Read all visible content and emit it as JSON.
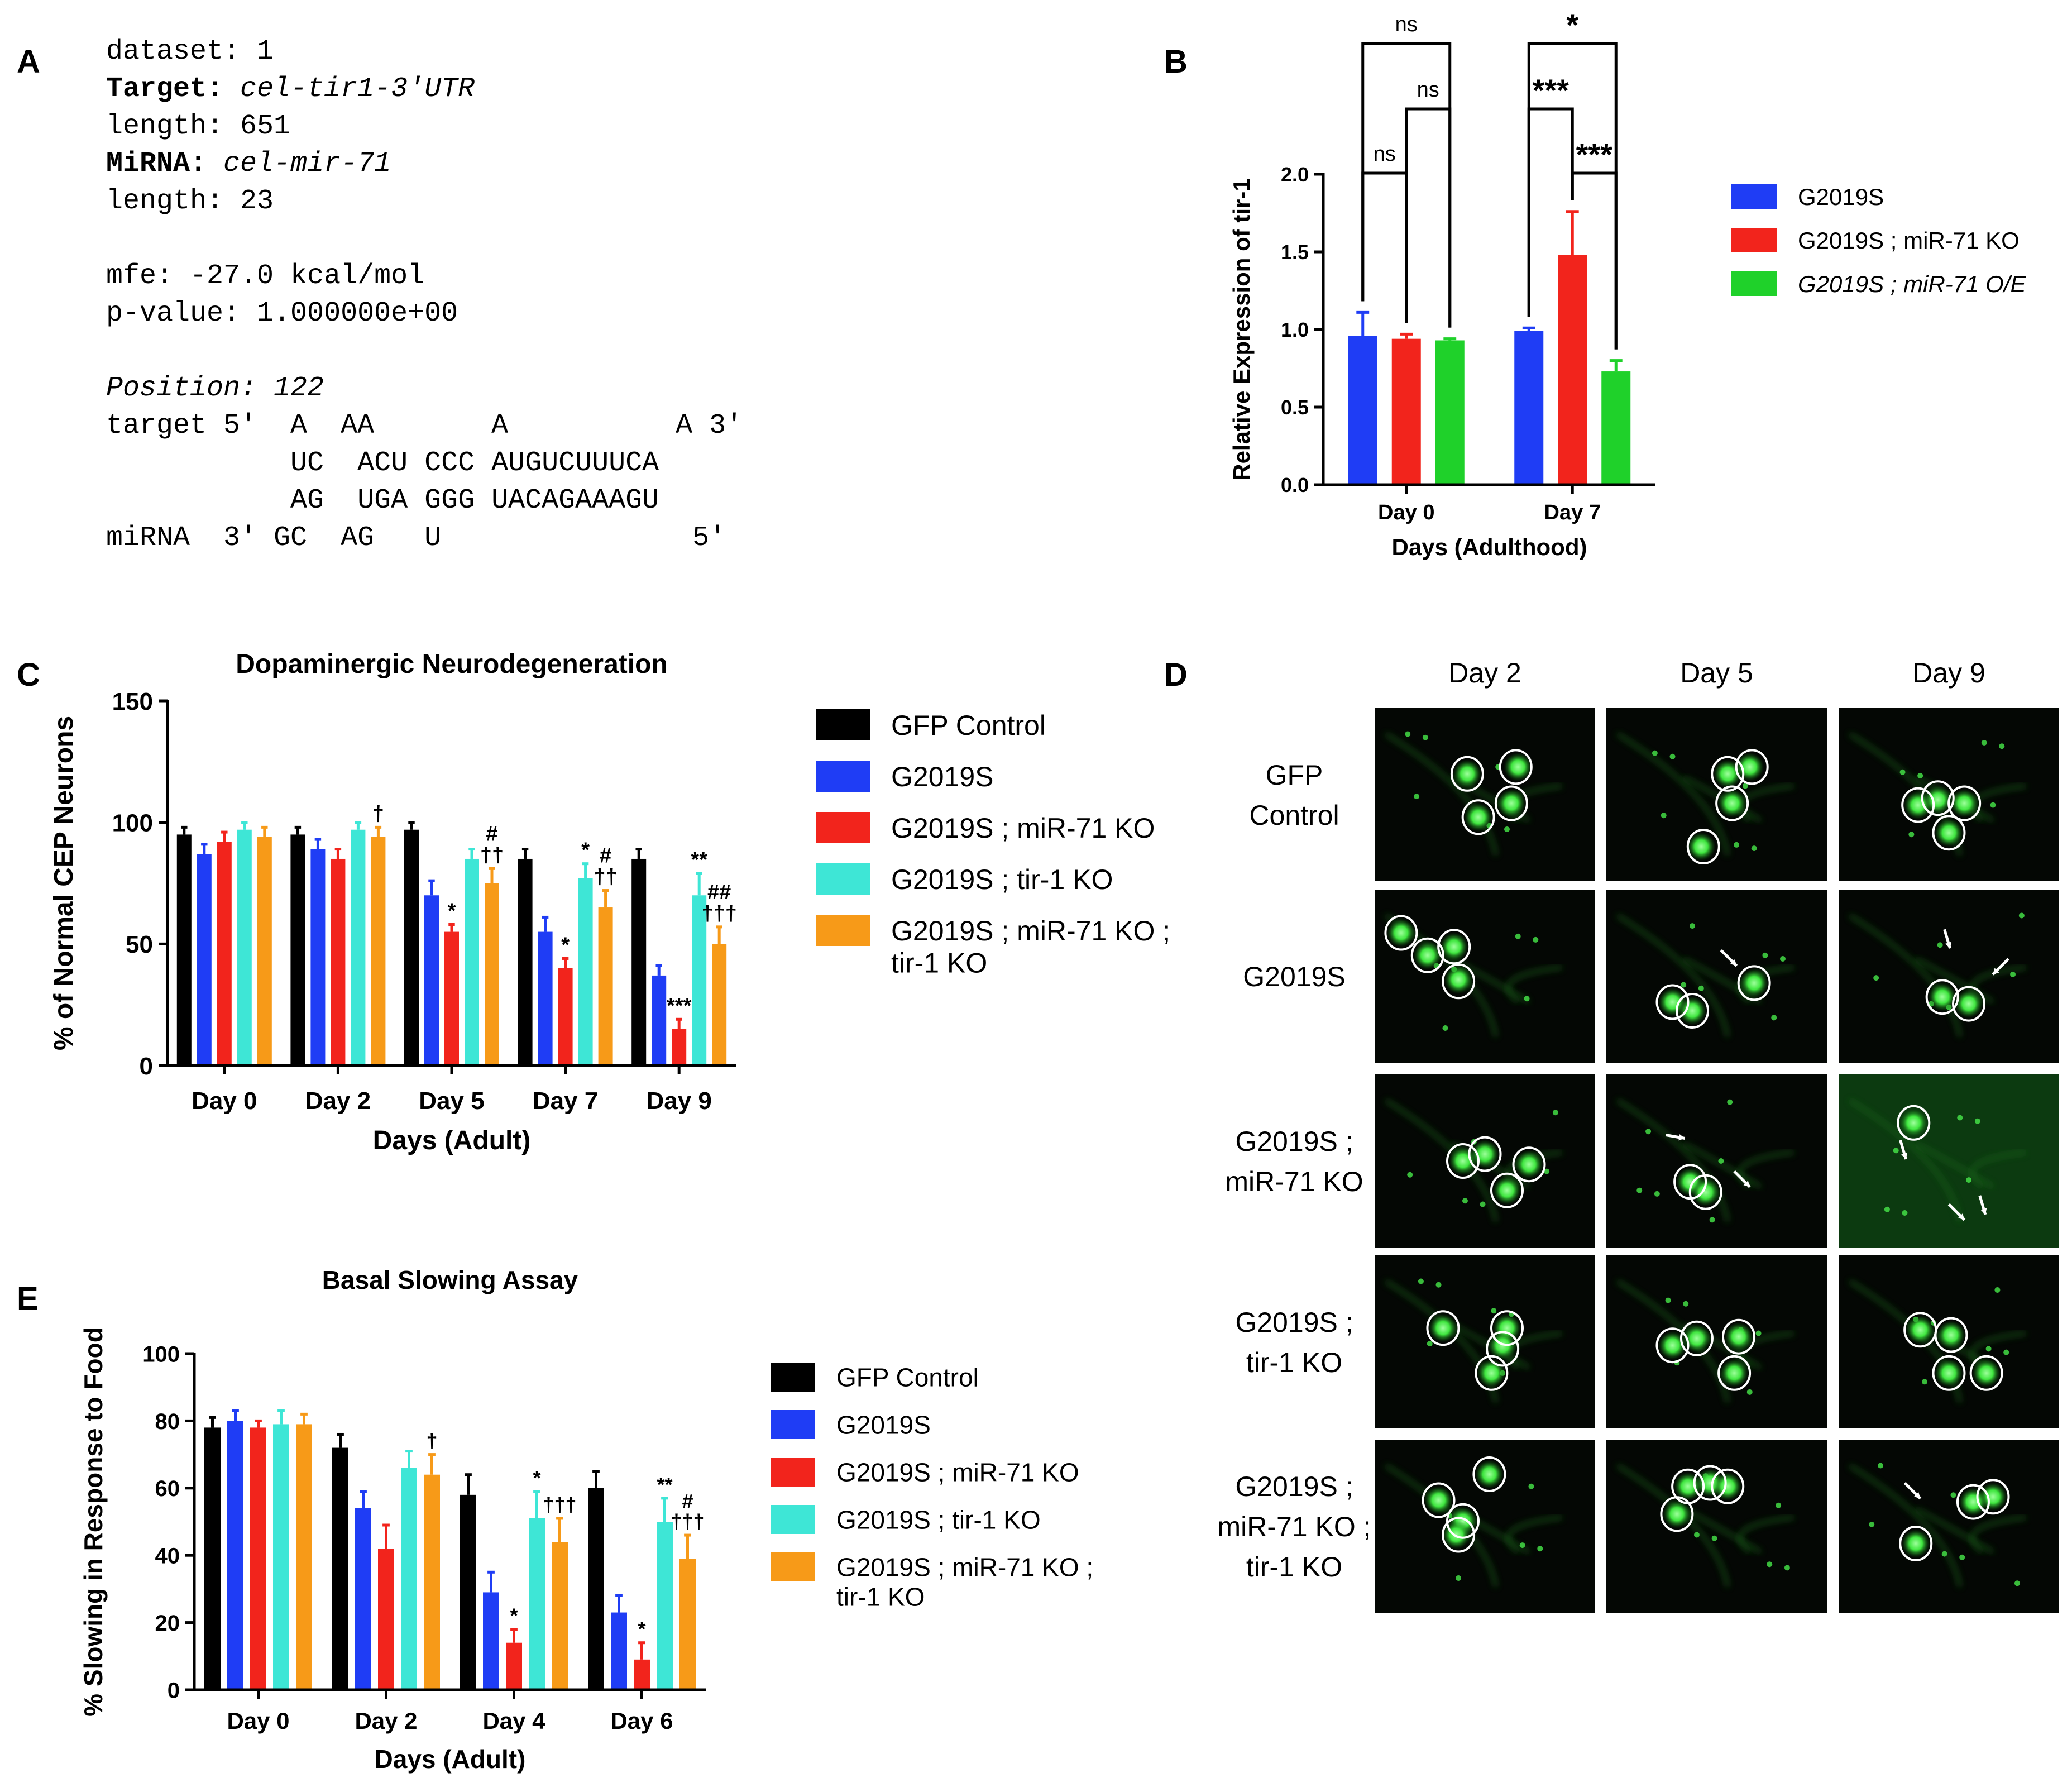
{
  "panels": {
    "A": {
      "letter": "A",
      "lines": [
        {
          "parts": [
            {
              "t": "dataset: 1"
            }
          ]
        },
        {
          "parts": [
            {
              "t": "Target: ",
              "b": true
            },
            {
              "t": "cel-tir1-3'UTR",
              "i": true
            }
          ]
        },
        {
          "parts": [
            {
              "t": "length: 651"
            }
          ]
        },
        {
          "parts": [
            {
              "t": "MiRNA: ",
              "b": true
            },
            {
              "t": "cel-mir-71",
              "i": true
            }
          ]
        },
        {
          "parts": [
            {
              "t": "length: 23"
            }
          ]
        },
        {
          "parts": [
            {
              "t": ""
            }
          ]
        },
        {
          "parts": [
            {
              "t": "mfe: -27.0 kcal/mol"
            }
          ]
        },
        {
          "parts": [
            {
              "t": "p-value: 1.000000e+00"
            }
          ]
        },
        {
          "parts": [
            {
              "t": ""
            }
          ]
        },
        {
          "parts": [
            {
              "t": "Position: 122",
              "i": true
            }
          ]
        },
        {
          "parts": [
            {
              "t": "target 5'  A  AA       A          A 3'"
            }
          ]
        },
        {
          "parts": [
            {
              "t": "           UC  ACU CCC AUGUCUUUCA"
            }
          ]
        },
        {
          "parts": [
            {
              "t": "           AG  UGA GGG UACAGAAAGU"
            }
          ]
        },
        {
          "parts": [
            {
              "t": "miRNA  3' GC  AG   U               5'"
            }
          ]
        }
      ]
    },
    "B": {
      "letter": "B"
    },
    "C": {
      "letter": "C"
    },
    "D": {
      "letter": "D",
      "columns": [
        "Day 2",
        "Day 5",
        "Day 9"
      ],
      "rows": [
        [
          "GFP",
          "Control"
        ],
        [
          "G2019S"
        ],
        [
          "G2019S ;",
          "miR-71 KO"
        ],
        [
          "G2019S ;",
          "tir-1 KO"
        ],
        [
          "G2019S ;",
          "miR-71 KO ;",
          "tir-1 KO"
        ]
      ]
    },
    "E": {
      "letter": "E"
    }
  },
  "colors": {
    "black": "#000000",
    "blue": "#1f3df5",
    "red": "#f2241c",
    "cyan": "#3ee6d6",
    "orange": "#f79a18",
    "green": "#1fd12a",
    "micro_bg": "#050805",
    "micro_glow": "#38e83a"
  },
  "chart_data": [
    {
      "id": "B",
      "type": "bar",
      "title": "",
      "xlabel": "Days (Adulthood)",
      "ylabel": "Relative Expression of tir-1",
      "ylim": [
        0,
        2.0
      ],
      "yticks": [
        "0.0",
        "0.5",
        "1.0",
        "1.5",
        "2.0"
      ],
      "categories": [
        "Day 0",
        "Day 7"
      ],
      "series": [
        {
          "name": "G2019S",
          "color": "#1f3df5",
          "values": [
            0.96,
            0.99
          ],
          "errors": [
            0.15,
            0.02
          ]
        },
        {
          "name": "G2019S ; miR-71 KO",
          "color": "#f2241c",
          "values": [
            0.94,
            1.48
          ],
          "errors": [
            0.03,
            0.28
          ]
        },
        {
          "name": "G2019S ; miR-71 O/E",
          "color": "#1fd12a",
          "values": [
            0.93,
            0.73
          ],
          "errors": [
            0.01,
            0.07
          ],
          "italic": true
        }
      ],
      "legend_position": "right",
      "significance": [
        {
          "group": 0,
          "from": 0,
          "to": 1,
          "label": "ns",
          "level": 1
        },
        {
          "group": 0,
          "from": 1,
          "to": 2,
          "label": "ns",
          "level": 2
        },
        {
          "group": 0,
          "from": 0,
          "to": 2,
          "label": "ns",
          "level": 3
        },
        {
          "group": 1,
          "from": 1,
          "to": 2,
          "label": "***",
          "level": 1
        },
        {
          "group": 1,
          "from": 0,
          "to": 1,
          "label": "***",
          "level": 2
        },
        {
          "group": 1,
          "from": 0,
          "to": 2,
          "label": "*",
          "level": 3
        }
      ]
    },
    {
      "id": "C",
      "type": "bar",
      "title": "Dopaminergic Neurodegeneration",
      "xlabel": "Days (Adult)",
      "ylabel": "% of Normal CEP Neurons",
      "ylim": [
        0,
        150
      ],
      "yticks": [
        "0",
        "50",
        "100",
        "150"
      ],
      "categories": [
        "Day 0",
        "Day 2",
        "Day 5",
        "Day 7",
        "Day 9"
      ],
      "series": [
        {
          "name": "GFP Control",
          "color": "#000000",
          "values": [
            95,
            95,
            97,
            85,
            85
          ],
          "errors": [
            3,
            3,
            3,
            4,
            4
          ]
        },
        {
          "name": "G2019S",
          "color": "#1f3df5",
          "values": [
            87,
            89,
            70,
            55,
            37
          ],
          "errors": [
            4,
            4,
            6,
            6,
            4
          ]
        },
        {
          "name": "G2019S ; miR-71 KO",
          "color": "#f2241c",
          "values": [
            92,
            85,
            55,
            40,
            15
          ],
          "errors": [
            4,
            4,
            3,
            4,
            4
          ]
        },
        {
          "name": "G2019S ; tir-1 KO",
          "color": "#3ee6d6",
          "values": [
            97,
            97,
            85,
            77,
            70
          ],
          "errors": [
            3,
            3,
            4,
            6,
            9
          ]
        },
        {
          "name": "G2019S ; miR-71 KO ; tir-1 KO",
          "color": "#f79a18",
          "values": [
            94,
            94,
            75,
            65,
            50
          ],
          "errors": [
            4,
            4,
            6,
            7,
            7
          ]
        }
      ],
      "legend_position": "right",
      "annotations": [
        {
          "cat": 1,
          "series": 4,
          "lines": [
            "†"
          ]
        },
        {
          "cat": 2,
          "series": 2,
          "lines": [
            "*"
          ]
        },
        {
          "cat": 2,
          "series": 4,
          "lines": [
            "#",
            "††"
          ]
        },
        {
          "cat": 3,
          "series": 2,
          "lines": [
            "*"
          ]
        },
        {
          "cat": 3,
          "series": 3,
          "lines": [
            "*"
          ]
        },
        {
          "cat": 3,
          "series": 4,
          "lines": [
            "#",
            "††"
          ]
        },
        {
          "cat": 4,
          "series": 2,
          "lines": [
            "***"
          ]
        },
        {
          "cat": 4,
          "series": 3,
          "lines": [
            "**"
          ]
        },
        {
          "cat": 4,
          "series": 4,
          "lines": [
            "##",
            "†††"
          ]
        }
      ]
    },
    {
      "id": "E",
      "type": "bar",
      "title": "Basal Slowing Assay",
      "xlabel": "Days (Adult)",
      "ylabel": "% Slowing in Response to Food",
      "ylim": [
        0,
        100
      ],
      "yticks": [
        "0",
        "20",
        "40",
        "60",
        "80",
        "100"
      ],
      "categories": [
        "Day 0",
        "Day 2",
        "Day 4",
        "Day 6"
      ],
      "series": [
        {
          "name": "GFP Control",
          "color": "#000000",
          "values": [
            78,
            72,
            58,
            60
          ],
          "errors": [
            3,
            4,
            6,
            5
          ]
        },
        {
          "name": "G2019S",
          "color": "#1f3df5",
          "values": [
            80,
            54,
            29,
            23
          ],
          "errors": [
            3,
            5,
            6,
            5
          ]
        },
        {
          "name": "G2019S ; miR-71 KO",
          "color": "#f2241c",
          "values": [
            78,
            42,
            14,
            9
          ],
          "errors": [
            2,
            7,
            4,
            5
          ]
        },
        {
          "name": "G2019S ; tir-1 KO",
          "color": "#3ee6d6",
          "values": [
            79,
            66,
            51,
            50
          ],
          "errors": [
            4,
            5,
            8,
            7
          ]
        },
        {
          "name": "G2019S ; miR-71 KO ; tir-1 KO",
          "color": "#f79a18",
          "values": [
            79,
            64,
            44,
            39
          ],
          "errors": [
            3,
            6,
            7,
            7
          ]
        }
      ],
      "legend_position": "right",
      "annotations": [
        {
          "cat": 1,
          "series": 4,
          "lines": [
            "†"
          ]
        },
        {
          "cat": 2,
          "series": 2,
          "lines": [
            "*"
          ]
        },
        {
          "cat": 2,
          "series": 3,
          "lines": [
            "*"
          ]
        },
        {
          "cat": 2,
          "series": 4,
          "lines": [
            "†††"
          ]
        },
        {
          "cat": 3,
          "series": 2,
          "lines": [
            "*"
          ]
        },
        {
          "cat": 3,
          "series": 3,
          "lines": [
            "**"
          ]
        },
        {
          "cat": 3,
          "series": 4,
          "lines": [
            "#",
            "†††"
          ]
        }
      ]
    }
  ]
}
